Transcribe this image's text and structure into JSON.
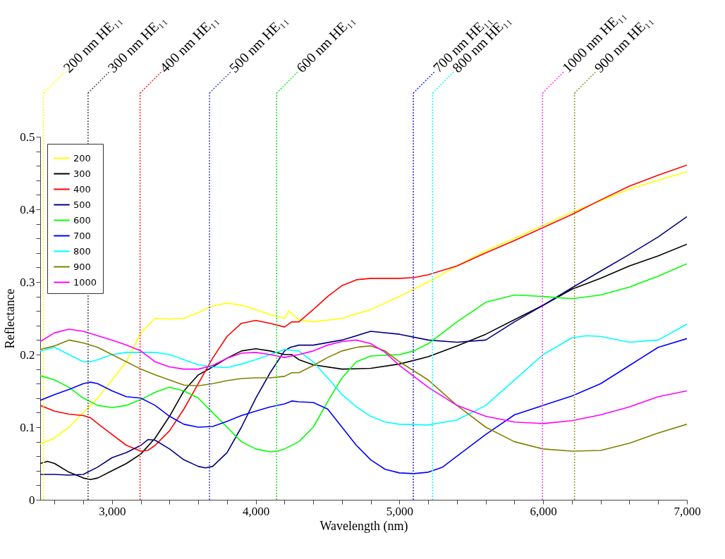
{
  "chart_data": {
    "type": "line",
    "xlabel": "Wavelength (nm)",
    "ylabel": "Reflectance",
    "xlim": [
      2500,
      7000
    ],
    "ylim": [
      0,
      0.5
    ],
    "xticks": [
      {
        "value": 2600,
        "label": null
      },
      {
        "value": 2800,
        "label": null
      },
      {
        "value": 3000,
        "label": "3,000"
      },
      {
        "value": 3200,
        "label": null
      },
      {
        "value": 3400,
        "label": null
      },
      {
        "value": 3600,
        "label": null
      },
      {
        "value": 3800,
        "label": null
      },
      {
        "value": 4000,
        "label": "4,000"
      },
      {
        "value": 4200,
        "label": null
      },
      {
        "value": 4400,
        "label": null
      },
      {
        "value": 4600,
        "label": null
      },
      {
        "value": 4800,
        "label": null
      },
      {
        "value": 5000,
        "label": "5,000"
      },
      {
        "value": 5200,
        "label": null
      },
      {
        "value": 5400,
        "label": null
      },
      {
        "value": 5600,
        "label": null
      },
      {
        "value": 5800,
        "label": null
      },
      {
        "value": 6000,
        "label": "6,000"
      },
      {
        "value": 6200,
        "label": null
      },
      {
        "value": 6400,
        "label": null
      },
      {
        "value": 6600,
        "label": null
      },
      {
        "value": 6800,
        "label": null
      },
      {
        "value": 7000,
        "label": "7,000"
      }
    ],
    "yticks": [
      0,
      {
        "value": 0.02,
        "label": null
      },
      {
        "value": 0.04,
        "label": null
      },
      {
        "value": 0.06,
        "label": null
      },
      {
        "value": 0.08,
        "label": null
      },
      0.1,
      {
        "value": 0.12,
        "label": null
      },
      {
        "value": 0.14,
        "label": null
      },
      {
        "value": 0.16,
        "label": null
      },
      {
        "value": 0.18,
        "label": null
      },
      0.2,
      {
        "value": 0.22,
        "label": null
      },
      {
        "value": 0.24,
        "label": null
      },
      {
        "value": 0.26,
        "label": null
      },
      {
        "value": 0.28,
        "label": null
      },
      0.3,
      {
        "value": 0.32,
        "label": null
      },
      {
        "value": 0.34,
        "label": null
      },
      {
        "value": 0.36,
        "label": null
      },
      {
        "value": 0.38,
        "label": null
      },
      0.4,
      {
        "value": 0.42,
        "label": null
      },
      {
        "value": 0.44,
        "label": null
      },
      {
        "value": 0.46,
        "label": null
      },
      {
        "value": 0.48,
        "label": null
      },
      0.5
    ],
    "grid": false,
    "legend": "top left",
    "series": [
      {
        "name": "200",
        "color": "#ffff00",
        "x": [
          2500,
          2600,
          2700,
          2800,
          2900,
          3000,
          3100,
          3200,
          3300,
          3400,
          3500,
          3600,
          3700,
          3800,
          3900,
          4000,
          4100,
          4200,
          4230,
          4300,
          4400,
          4600,
          4800,
          5000,
          5200,
          5400,
          5600,
          5800,
          6000,
          6200,
          6400,
          6600,
          6800,
          7000
        ],
        "values": [
          0.077,
          0.085,
          0.1,
          0.12,
          0.14,
          0.165,
          0.19,
          0.23,
          0.25,
          0.249,
          0.25,
          0.258,
          0.267,
          0.271,
          0.268,
          0.262,
          0.255,
          0.25,
          0.26,
          0.248,
          0.245,
          0.25,
          0.262,
          0.28,
          0.3,
          0.322,
          0.343,
          0.36,
          0.378,
          0.396,
          0.412,
          0.428,
          0.44,
          0.452
        ]
      },
      {
        "name": "300",
        "color": "#000000",
        "x": [
          2500,
          2550,
          2600,
          2700,
          2800,
          2850,
          2900,
          3000,
          3100,
          3200,
          3300,
          3400,
          3500,
          3600,
          3700,
          3800,
          3900,
          4000,
          4100,
          4200,
          4250,
          4300,
          4400,
          4600,
          4800,
          5000,
          5200,
          5400,
          5600,
          5800,
          6000,
          6200,
          6400,
          6600,
          6800,
          7000
        ],
        "values": [
          0.05,
          0.053,
          0.05,
          0.038,
          0.03,
          0.028,
          0.03,
          0.04,
          0.05,
          0.063,
          0.085,
          0.115,
          0.15,
          0.172,
          0.183,
          0.195,
          0.205,
          0.208,
          0.205,
          0.2,
          0.2,
          0.193,
          0.186,
          0.18,
          0.181,
          0.187,
          0.197,
          0.212,
          0.228,
          0.248,
          0.268,
          0.29,
          0.305,
          0.322,
          0.336,
          0.352
        ]
      },
      {
        "name": "400",
        "color": "#ff0000",
        "x": [
          2500,
          2600,
          2700,
          2800,
          2850,
          2900,
          3000,
          3100,
          3200,
          3250,
          3300,
          3400,
          3500,
          3600,
          3700,
          3800,
          3900,
          4000,
          4100,
          4200,
          4250,
          4300,
          4400,
          4500,
          4600,
          4700,
          4800,
          5000,
          5100,
          5200,
          5400,
          5600,
          5800,
          6000,
          6200,
          6400,
          6600,
          6800,
          7000
        ],
        "values": [
          0.13,
          0.122,
          0.118,
          0.116,
          0.113,
          0.105,
          0.09,
          0.075,
          0.067,
          0.068,
          0.075,
          0.095,
          0.125,
          0.16,
          0.195,
          0.225,
          0.243,
          0.247,
          0.243,
          0.238,
          0.245,
          0.245,
          0.262,
          0.28,
          0.295,
          0.303,
          0.305,
          0.305,
          0.306,
          0.31,
          0.322,
          0.34,
          0.357,
          0.375,
          0.393,
          0.413,
          0.432,
          0.447,
          0.461
        ]
      },
      {
        "name": "500",
        "color": "#000080",
        "x": [
          2500,
          2600,
          2700,
          2800,
          2900,
          3000,
          3100,
          3200,
          3250,
          3300,
          3400,
          3500,
          3600,
          3650,
          3700,
          3800,
          3900,
          4000,
          4100,
          4200,
          4240,
          4300,
          4400,
          4600,
          4800,
          5000,
          5200,
          5400,
          5600,
          5800,
          6000,
          6200,
          6400,
          6600,
          6800,
          7000
        ],
        "values": [
          0.035,
          0.035,
          0.034,
          0.035,
          0.045,
          0.058,
          0.065,
          0.075,
          0.083,
          0.082,
          0.07,
          0.055,
          0.046,
          0.044,
          0.046,
          0.065,
          0.1,
          0.14,
          0.175,
          0.205,
          0.21,
          0.213,
          0.213,
          0.22,
          0.232,
          0.228,
          0.22,
          0.217,
          0.22,
          0.245,
          0.268,
          0.292,
          0.315,
          0.338,
          0.362,
          0.39
        ]
      },
      {
        "name": "600",
        "color": "#00ff00",
        "x": [
          2500,
          2600,
          2700,
          2800,
          2900,
          3000,
          3100,
          3200,
          3300,
          3400,
          3500,
          3600,
          3700,
          3800,
          3900,
          4000,
          4100,
          4150,
          4200,
          4300,
          4400,
          4500,
          4600,
          4700,
          4800,
          5000,
          5100,
          5200,
          5400,
          5600,
          5800,
          6000,
          6200,
          6400,
          6600,
          6800,
          7000
        ],
        "values": [
          0.171,
          0.165,
          0.155,
          0.14,
          0.13,
          0.127,
          0.13,
          0.138,
          0.148,
          0.155,
          0.15,
          0.14,
          0.12,
          0.1,
          0.08,
          0.07,
          0.066,
          0.067,
          0.07,
          0.08,
          0.1,
          0.135,
          0.168,
          0.19,
          0.198,
          0.2,
          0.205,
          0.215,
          0.245,
          0.272,
          0.282,
          0.28,
          0.277,
          0.282,
          0.293,
          0.308,
          0.325
        ]
      },
      {
        "name": "700",
        "color": "#0000ff",
        "x": [
          2500,
          2600,
          2700,
          2800,
          2850,
          2900,
          3000,
          3100,
          3200,
          3300,
          3400,
          3500,
          3600,
          3700,
          3800,
          3900,
          4000,
          4100,
          4200,
          4250,
          4300,
          4400,
          4500,
          4600,
          4700,
          4800,
          4900,
          5000,
          5100,
          5200,
          5300,
          5400,
          5600,
          5800,
          6000,
          6200,
          6400,
          6600,
          6800,
          7000
        ],
        "values": [
          0.137,
          0.145,
          0.152,
          0.16,
          0.162,
          0.16,
          0.15,
          0.142,
          0.14,
          0.13,
          0.115,
          0.104,
          0.1,
          0.101,
          0.108,
          0.116,
          0.122,
          0.128,
          0.132,
          0.136,
          0.135,
          0.134,
          0.125,
          0.1,
          0.075,
          0.055,
          0.042,
          0.037,
          0.036,
          0.038,
          0.045,
          0.06,
          0.09,
          0.117,
          0.13,
          0.143,
          0.16,
          0.185,
          0.21,
          0.222
        ]
      },
      {
        "name": "800",
        "color": "#00ffff",
        "x": [
          2500,
          2600,
          2700,
          2800,
          2850,
          2900,
          3000,
          3100,
          3200,
          3300,
          3400,
          3500,
          3600,
          3700,
          3800,
          3900,
          4000,
          4100,
          4200,
          4300,
          4400,
          4500,
          4600,
          4700,
          4800,
          4900,
          5000,
          5200,
          5400,
          5600,
          5800,
          6000,
          6200,
          6300,
          6400,
          6600,
          6800,
          7000
        ],
        "values": [
          0.205,
          0.21,
          0.2,
          0.19,
          0.19,
          0.193,
          0.2,
          0.203,
          0.203,
          0.203,
          0.2,
          0.193,
          0.186,
          0.183,
          0.182,
          0.187,
          0.193,
          0.2,
          0.207,
          0.205,
          0.19,
          0.168,
          0.145,
          0.128,
          0.115,
          0.107,
          0.104,
          0.103,
          0.11,
          0.13,
          0.165,
          0.2,
          0.223,
          0.226,
          0.225,
          0.217,
          0.22,
          0.242
        ]
      },
      {
        "name": "900",
        "color": "#808000",
        "x": [
          2500,
          2600,
          2700,
          2800,
          2900,
          3000,
          3100,
          3200,
          3300,
          3400,
          3500,
          3600,
          3700,
          3800,
          3900,
          4000,
          4100,
          4200,
          4250,
          4300,
          4400,
          4500,
          4600,
          4700,
          4800,
          4900,
          5000,
          5200,
          5400,
          5600,
          5800,
          6000,
          6200,
          6400,
          6600,
          6800,
          7000
        ],
        "values": [
          0.207,
          0.212,
          0.22,
          0.216,
          0.21,
          0.2,
          0.19,
          0.18,
          0.172,
          0.165,
          0.158,
          0.157,
          0.16,
          0.164,
          0.167,
          0.168,
          0.168,
          0.17,
          0.175,
          0.175,
          0.185,
          0.196,
          0.205,
          0.21,
          0.212,
          0.205,
          0.19,
          0.165,
          0.13,
          0.1,
          0.08,
          0.07,
          0.067,
          0.068,
          0.078,
          0.092,
          0.104
        ]
      },
      {
        "name": "1000",
        "color": "#ff00ff",
        "x": [
          2500,
          2600,
          2700,
          2800,
          2900,
          3000,
          3100,
          3200,
          3300,
          3400,
          3500,
          3600,
          3700,
          3800,
          3900,
          4000,
          4100,
          4200,
          4300,
          4400,
          4500,
          4600,
          4700,
          4800,
          4900,
          5000,
          5200,
          5400,
          5600,
          5800,
          6000,
          6200,
          6400,
          6600,
          6800,
          7000
        ],
        "values": [
          0.218,
          0.23,
          0.235,
          0.232,
          0.226,
          0.22,
          0.213,
          0.205,
          0.19,
          0.183,
          0.18,
          0.18,
          0.185,
          0.195,
          0.202,
          0.203,
          0.2,
          0.196,
          0.2,
          0.205,
          0.213,
          0.218,
          0.22,
          0.215,
          0.203,
          0.185,
          0.155,
          0.13,
          0.115,
          0.107,
          0.105,
          0.109,
          0.117,
          0.128,
          0.142,
          0.15
        ]
      }
    ],
    "ref_lines": [
      {
        "axis": "x",
        "value": 2523,
        "label": "200 nm HE₁₁",
        "color": "#ffff00",
        "line_style": "dotted"
      },
      {
        "axis": "x",
        "value": 2833,
        "label": "300 nm HE₁₁",
        "color": "#555555",
        "line_style": "dotted"
      },
      {
        "axis": "x",
        "value": 3195,
        "label": "400 nm HE₁₁",
        "color": "#ff3030",
        "line_style": "dotted"
      },
      {
        "axis": "x",
        "value": 3678,
        "label": "500 nm HE₁₁",
        "color": "#5050c0",
        "line_style": "dotted"
      },
      {
        "axis": "x",
        "value": 4145,
        "label": "600 nm HE₁₁",
        "color": "#30e030",
        "line_style": "dotted"
      },
      {
        "axis": "x",
        "value": 5096,
        "label": "700 nm HE₁₁",
        "color": "#3030ff",
        "line_style": "dotted"
      },
      {
        "axis": "x",
        "value": 5230,
        "label": "800 nm HE₁₁",
        "color": "#30f0f0",
        "line_style": "dotted"
      },
      {
        "axis": "x",
        "value": 5995,
        "label": "1000 nm HE₁₁",
        "color": "#ff40ff",
        "line_style": "dotted"
      },
      {
        "axis": "x",
        "value": 6218,
        "label": "900 nm HE₁₁",
        "color": "#9a9a30",
        "line_style": "dotted"
      }
    ]
  }
}
